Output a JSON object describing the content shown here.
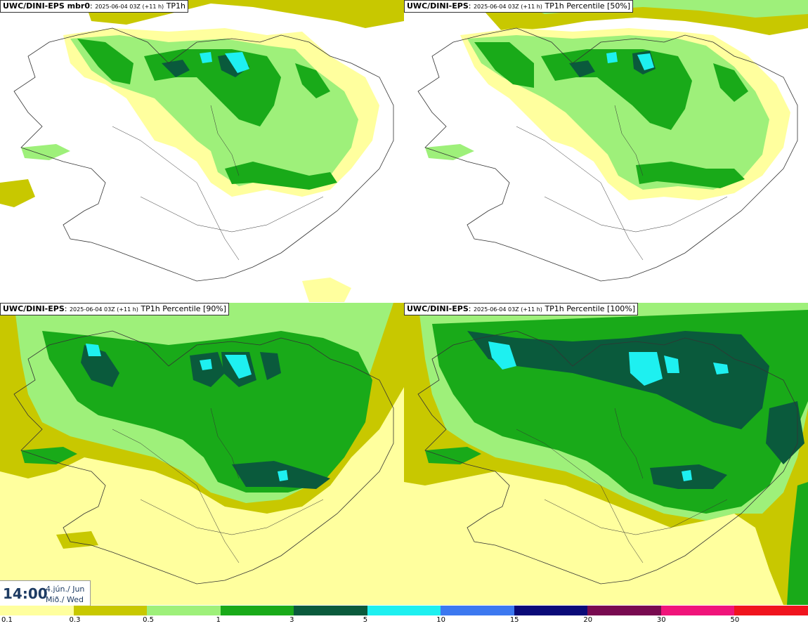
{
  "panels": [
    {
      "model": "UWC/DINI-EPS mbr0",
      "run": "2025-06-04 03Z (+11 h)",
      "field": "TP1h"
    },
    {
      "model": "UWC/DINI-EPS",
      "run": "2025-06-04 03Z (+11 h)",
      "field": "TP1h Percentile [50%]"
    },
    {
      "model": "UWC/DINI-EPS",
      "run": "2025-06-04 03Z (+11 h)",
      "field": "TP1h Percentile [90%]"
    },
    {
      "model": "UWC/DINI-EPS",
      "run": "2025-06-04 03Z (+11 h)",
      "field": "TP1h Percentile [100%]"
    }
  ],
  "valid_time": {
    "time": "14:00",
    "date": "4.jún./ Jun",
    "day": "Mið./ Wed"
  },
  "colorbar": {
    "colors": [
      "#ffff9e",
      "#c8c800",
      "#9ef07a",
      "#19aa19",
      "#0a5a3c",
      "#1ef0f0",
      "#3c78f0",
      "#0a0a78",
      "#780a50",
      "#f0147a",
      "#f0141e"
    ],
    "labels": [
      "0.1",
      "0.3",
      "0.5",
      "1",
      "3",
      "5",
      "10",
      "15",
      "20",
      "30",
      "50"
    ]
  }
}
